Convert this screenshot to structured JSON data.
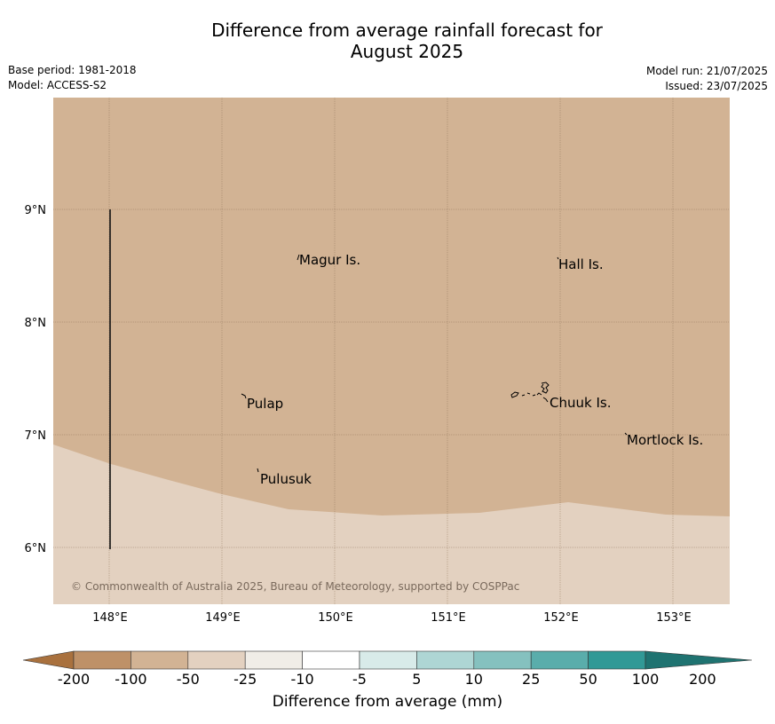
{
  "title": {
    "line1": "Difference from average rainfall forecast for",
    "line2": "August 2025"
  },
  "meta": {
    "base_period": "Base period: 1981-2018",
    "model": "Model: ACCESS-S2",
    "model_run": "Model run: 21/07/2025",
    "issued": "Issued: 23/07/2025"
  },
  "map": {
    "lon_ticks": [
      "148°E",
      "149°E",
      "150°E",
      "151°E",
      "152°E",
      "153°E"
    ],
    "lat_ticks": [
      "9°N",
      "8°N",
      "7°N",
      "6°N"
    ],
    "places": [
      {
        "name": "Magur Is."
      },
      {
        "name": "Hall Is."
      },
      {
        "name": "Pulap"
      },
      {
        "name": "Chuuk Is."
      },
      {
        "name": "Mortlock Is."
      },
      {
        "name": "Pulusuk"
      }
    ],
    "copyright": "© Commonwealth of Australia 2025, Bureau of Meteorology, supported by COSPPac",
    "colors": {
      "category_-50_-25": "#d2b394",
      "category_-25_-10": "#e3d1c0"
    }
  },
  "colorbar": {
    "title": "Difference from average (mm)",
    "tick_labels": [
      "-200",
      "-100",
      "-50",
      "-25",
      "-10",
      "-5",
      "5",
      "10",
      "25",
      "50",
      "100",
      "200"
    ],
    "colors": [
      "#a9713e",
      "#be9168",
      "#d2b394",
      "#e3d1c0",
      "#f0ede7",
      "#ffffff",
      "#d8ebe9",
      "#aed6d4",
      "#85c1bf",
      "#5aadab",
      "#319996",
      "#1f7371"
    ]
  }
}
